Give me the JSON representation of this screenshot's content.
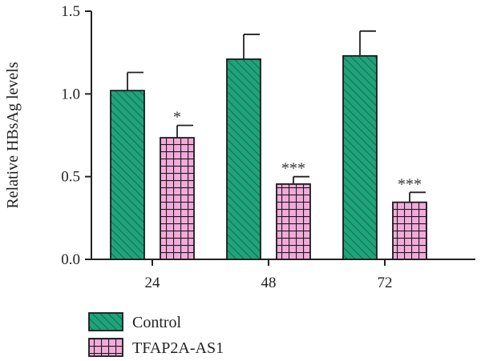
{
  "chart_data": {
    "type": "bar",
    "title": "",
    "xlabel": "",
    "ylabel": "Relative HBsAg levels",
    "ylim": [
      0,
      1.5
    ],
    "yticks": [
      "0.0",
      "0.5",
      "1.0",
      "1.5"
    ],
    "categories": [
      "24",
      "48",
      "72"
    ],
    "error_bars": "upper",
    "grid": false,
    "legend_position": "bottom-left",
    "series": [
      {
        "name": "Control",
        "values": [
          1.02,
          1.21,
          1.23
        ],
        "errors": [
          0.11,
          0.15,
          0.15
        ],
        "significance": [
          "",
          "",
          ""
        ],
        "color": "#1fa37a",
        "pattern": "diagonal-hatch"
      },
      {
        "name": "TFAP2A-AS1",
        "values": [
          0.735,
          0.455,
          0.345
        ],
        "errors": [
          0.075,
          0.045,
          0.06
        ],
        "significance": [
          "*",
          "***",
          "***"
        ],
        "color": "#f0a8d8",
        "pattern": "grid"
      }
    ]
  }
}
